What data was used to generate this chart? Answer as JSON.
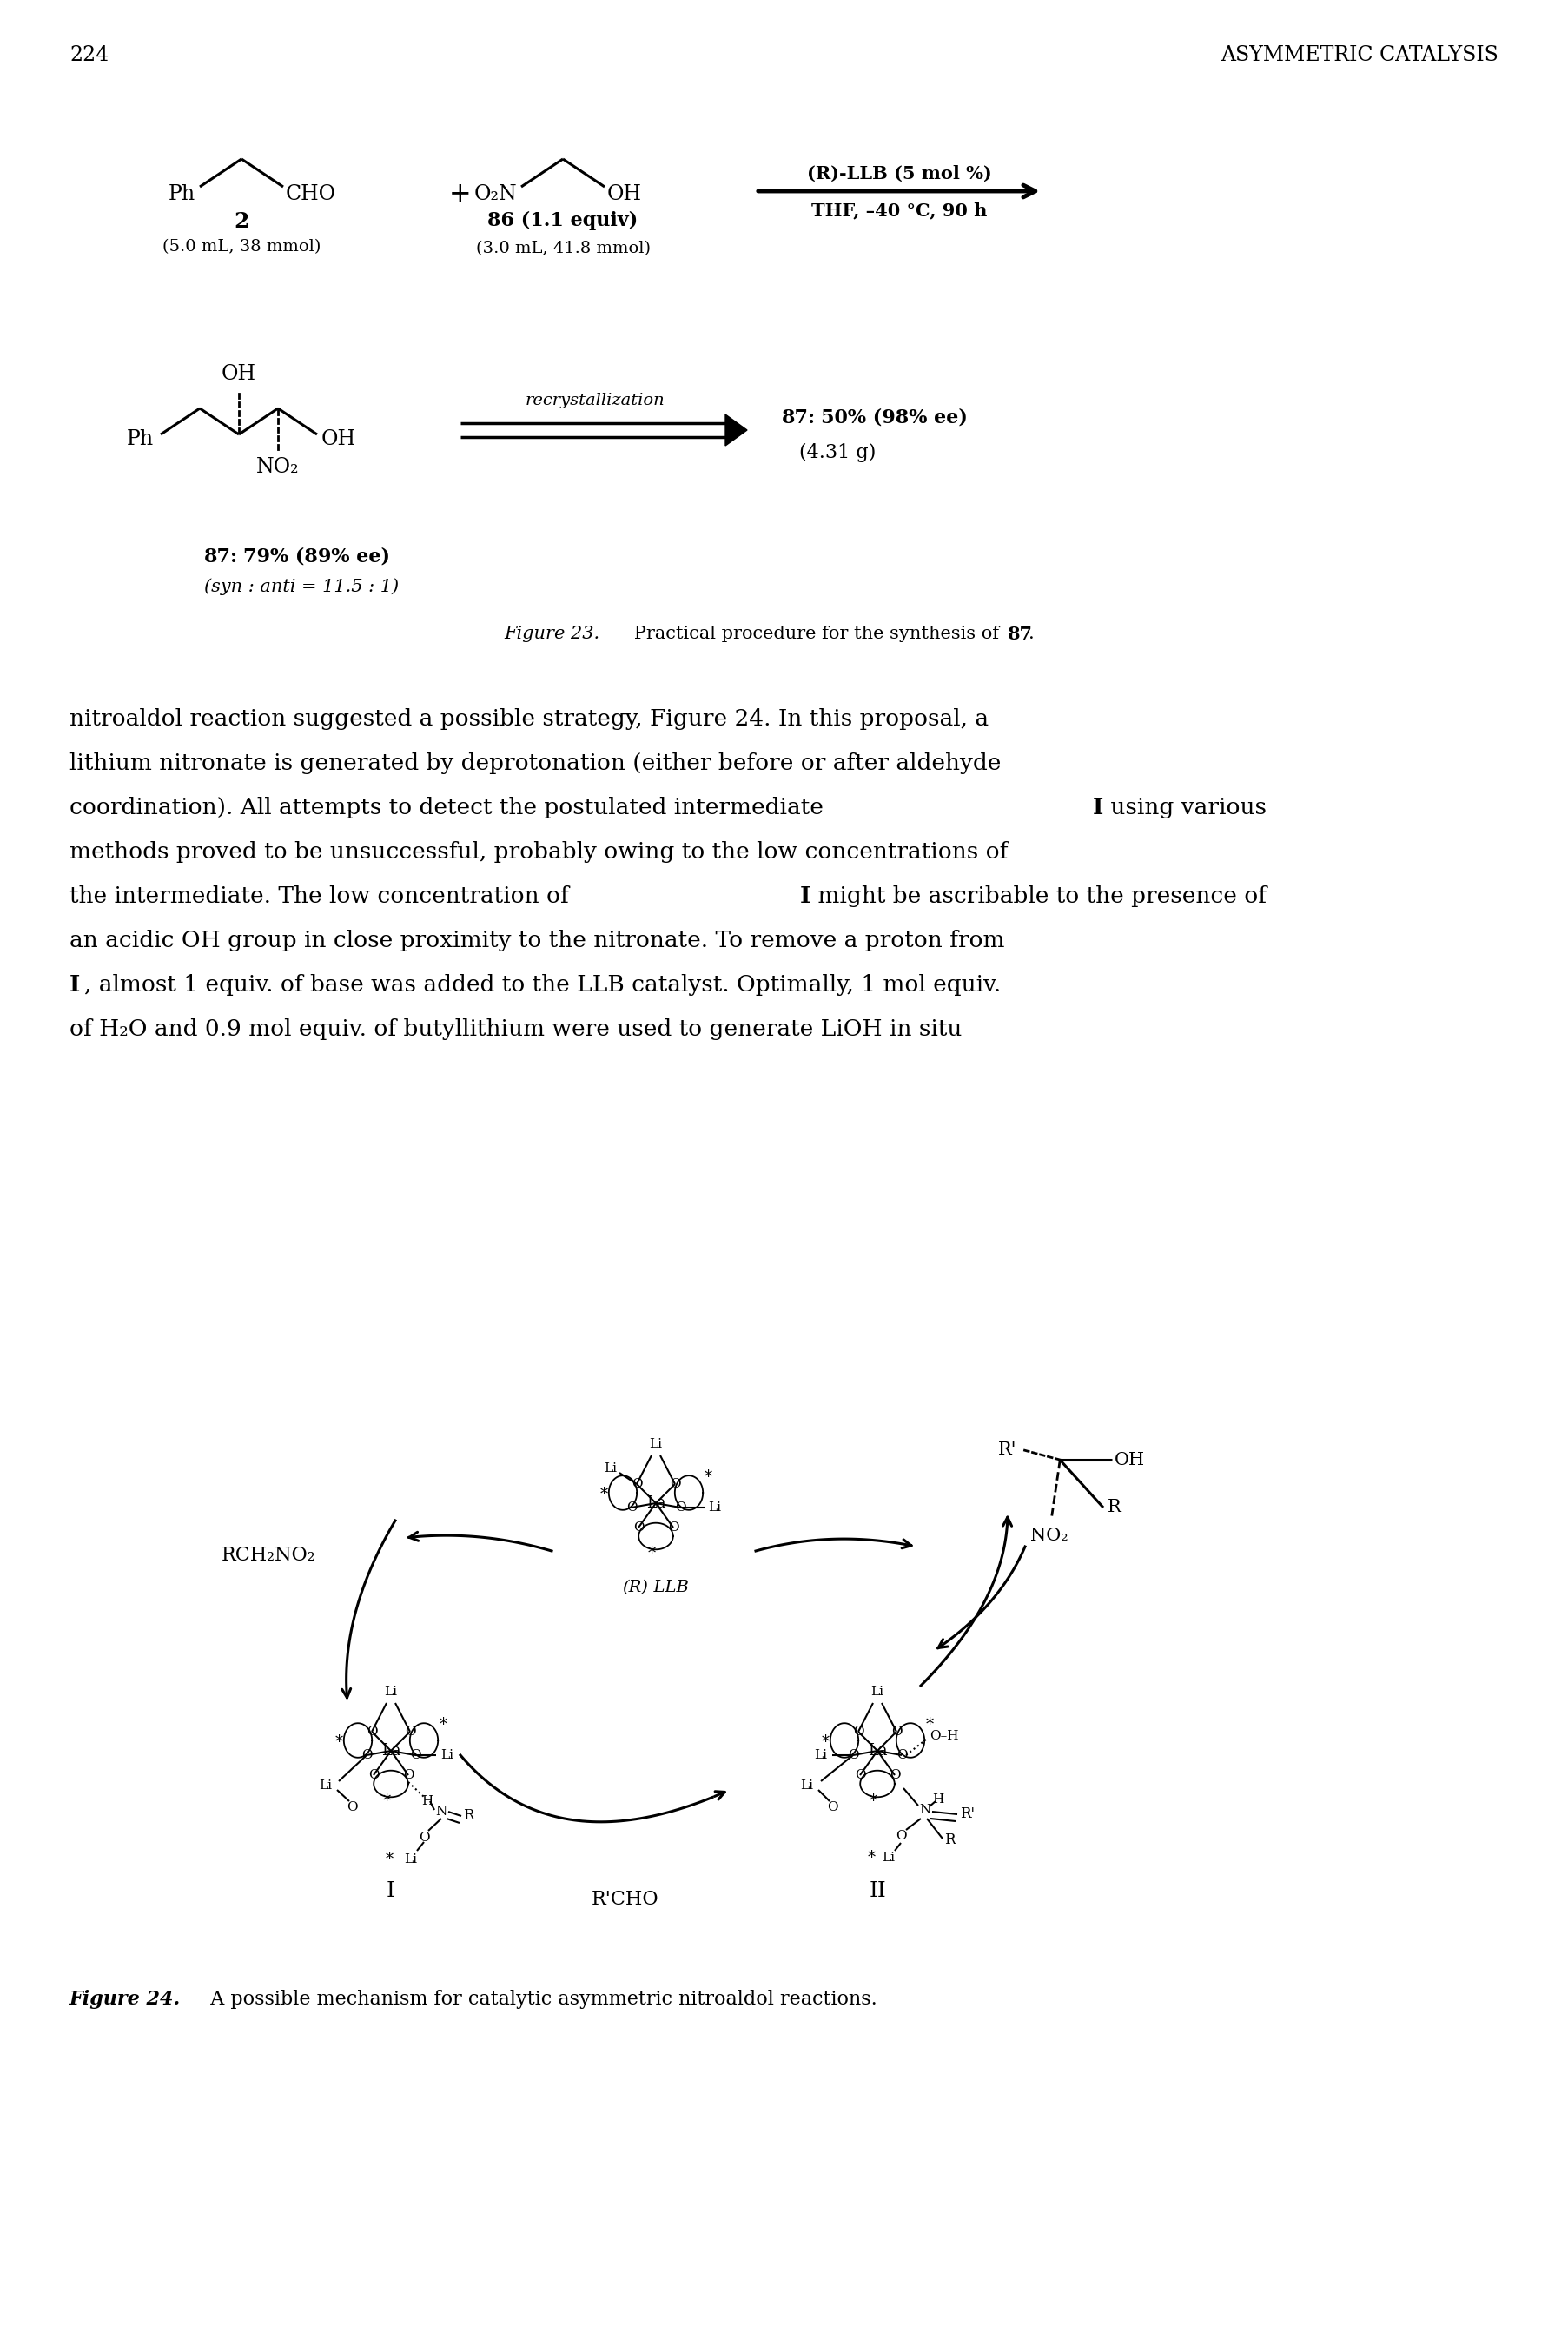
{
  "page_number": "224",
  "header_right": "ASYMMETRIC CATALYSIS",
  "body_text_lines": [
    "nitroaldol reaction suggested a possible strategy, Figure 24. In this proposal, a",
    "lithium nitronate is generated by deprotonation (either before or after aldehyde",
    "coordination). All attempts to detect the postulated intermediate I using various",
    "methods proved to be unsuccessful, probably owing to the low concentrations of",
    "the intermediate. The low concentration of I might be ascribable to the presence of",
    "an acidic OH group in close proximity to the nitronate. To remove a proton from",
    "I, almost 1 equiv. of base was added to the LLB catalyst. Optimally, 1 mol equiv.",
    "of H2O and 0.9 mol equiv. of butyllithium were used to generate LiOH in situ"
  ],
  "fig24_caption_italic": "Figure 24.",
  "fig24_caption_normal": "   A possible mechanism for catalytic asymmetric nitroaldol reactions.",
  "background_color": "#ffffff",
  "text_color": "#000000"
}
